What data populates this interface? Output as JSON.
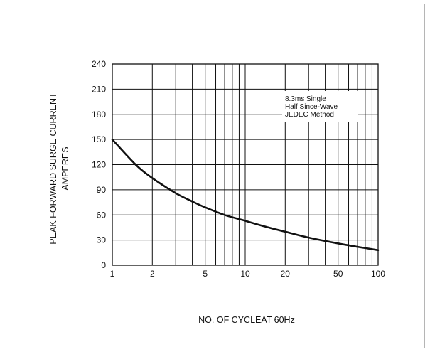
{
  "chart_data": {
    "type": "line",
    "x_scale": "log",
    "xlim": [
      1,
      100
    ],
    "ylim": [
      0,
      240
    ],
    "grid": true,
    "xlabel": "NO. OF CYCLEAT 60Hz",
    "ylabel_line1": "PEAK FORWARD SURGE CURRENT",
    "ylabel_line2": "AMPERES",
    "x_ticks": [
      1,
      2,
      5,
      10,
      20,
      50,
      100
    ],
    "x_tick_labels": [
      "1",
      "2",
      "5",
      "10",
      "20",
      "50",
      "100"
    ],
    "y_ticks": [
      0,
      30,
      60,
      90,
      120,
      150,
      180,
      210,
      240
    ],
    "y_tick_labels": [
      "0",
      "30",
      "60",
      "90",
      "120",
      "150",
      "180",
      "210",
      "240"
    ],
    "annotation_lines": [
      "8.3ms Single",
      "Half Since-Wave",
      "JEDEC Method"
    ],
    "series": [
      {
        "x": [
          1,
          1.5,
          2,
          3,
          4,
          5,
          7,
          10,
          15,
          20,
          30,
          50,
          70,
          100
        ],
        "values": [
          150,
          120,
          104,
          86,
          76,
          69,
          60,
          53,
          45,
          40,
          33,
          26,
          22,
          18
        ]
      }
    ]
  }
}
